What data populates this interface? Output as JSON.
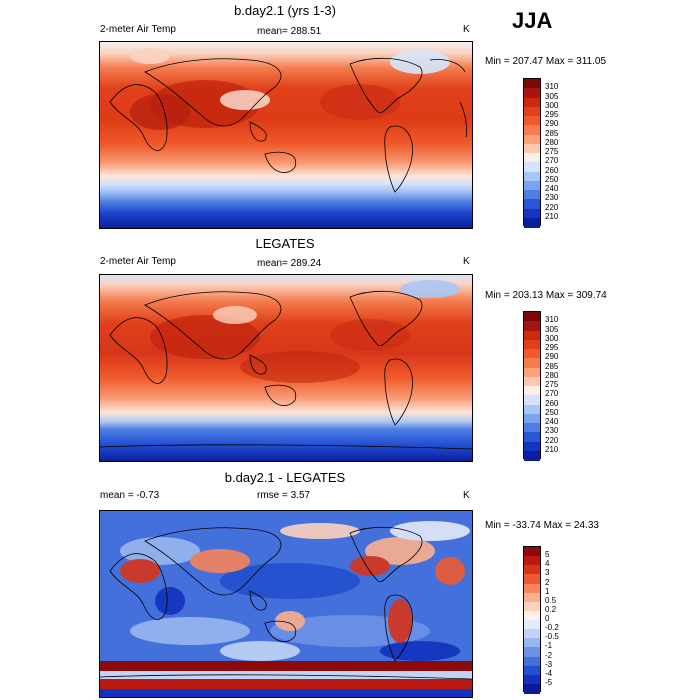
{
  "season": "JJA",
  "panels": [
    {
      "title": "b.day2.1 (yrs 1-3)",
      "left_label": "2-meter Air Temp",
      "center_label": "mean= 288.51",
      "units": "K",
      "minmax": "Min = 207.47 Max = 311.05",
      "kind": "temp"
    },
    {
      "title": "LEGATES",
      "left_label": "2-meter Air Temp",
      "center_label": "mean= 289.24",
      "units": "K",
      "minmax": "Min = 203.13 Max = 309.74",
      "kind": "temp"
    },
    {
      "title": "b.day2.1 - LEGATES",
      "left_label": "mean =  -0.73",
      "center_label": "rmse =   3.57",
      "units": "K",
      "minmax": "Min = -33.74 Max =  24.33",
      "kind": "diff"
    }
  ],
  "temp_colorbar": {
    "labels": [
      "310",
      "305",
      "300",
      "295",
      "290",
      "285",
      "280",
      "275",
      "270",
      "260",
      "250",
      "240",
      "230",
      "220",
      "210"
    ],
    "colors": [
      "#7a0a0a",
      "#a81414",
      "#cc2a10",
      "#e0401a",
      "#ef5a2a",
      "#f47c4e",
      "#f9a27c",
      "#fcc9b0",
      "#fdeee6",
      "#d6e4fb",
      "#aac6f5",
      "#7ba4ee",
      "#4d7ee3",
      "#2856d6",
      "#1435c4",
      "#0a1fa0"
    ]
  },
  "diff_colorbar": {
    "labels": [
      "5",
      "4",
      "3",
      "2",
      "1",
      "0.5",
      "0.2",
      "0",
      "-0.2",
      "-0.5",
      "-1",
      "-2",
      "-3",
      "-4",
      "-5"
    ],
    "colors": [
      "#8c0a0a",
      "#b81a12",
      "#d8341a",
      "#ec5a32",
      "#f6845c",
      "#fab08e",
      "#fdd2bc",
      "#fff2ea",
      "#e4ecfb",
      "#c2d4f6",
      "#98b6ef",
      "#6c92e6",
      "#4470dc",
      "#2250cf",
      "#1232bd",
      "#0a1a96"
    ]
  }
}
